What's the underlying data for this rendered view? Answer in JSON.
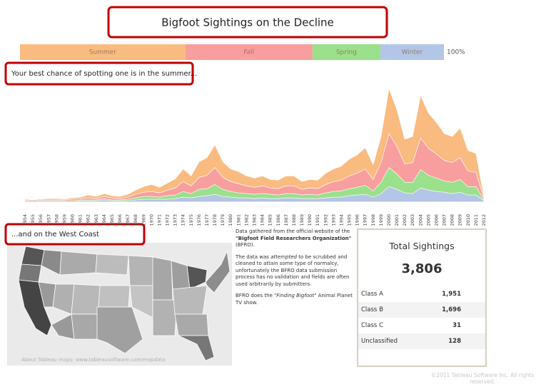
{
  "title": "Bigfoot Sightings on the Decline",
  "season_bar": {
    "labels": [
      "Summer",
      "Fall",
      "Spring",
      "Winter"
    ],
    "values": [
      39,
      30,
      16,
      15
    ],
    "colors": [
      "#f9bb80",
      "#f89e9e",
      "#9be08b",
      "#b3c6e7"
    ],
    "axis_label": "100%"
  },
  "annotations": [
    "Your best chance of spotting one is in the summer...",
    "...and on the West Coast"
  ],
  "chart_data": {
    "type": "area",
    "stacked": true,
    "categories": [
      "1954",
      "1955",
      "1956",
      "1957",
      "1958",
      "1959",
      "1960",
      "1961",
      "1962",
      "1963",
      "1964",
      "1965",
      "1966",
      "1967",
      "1968",
      "1969",
      "1970",
      "1971",
      "1972",
      "1973",
      "1974",
      "1975",
      "1976",
      "1977",
      "1978",
      "1979",
      "1980",
      "1981",
      "1982",
      "1983",
      "1984",
      "1985",
      "1986",
      "1987",
      "1988",
      "1989",
      "1990",
      "1991",
      "1992",
      "1993",
      "1994",
      "1995",
      "1996",
      "1997",
      "1998",
      "1999",
      "2000",
      "2001",
      "2002",
      "2003",
      "2004",
      "2005",
      "2006",
      "2007",
      "2008",
      "2009",
      "2010",
      "2011",
      "2012"
    ],
    "series": [
      {
        "name": "Summer",
        "color": "#f9bb80",
        "values": [
          1,
          1,
          1,
          2,
          2,
          1,
          2,
          2,
          4,
          3,
          4,
          3,
          3,
          4,
          6,
          8,
          10,
          8,
          10,
          13,
          18,
          14,
          22,
          25,
          32,
          22,
          18,
          17,
          14,
          13,
          14,
          12,
          12,
          14,
          14,
          11,
          12,
          12,
          16,
          18,
          20,
          24,
          26,
          30,
          21,
          37,
          64,
          52,
          35,
          37,
          60,
          50,
          45,
          38,
          37,
          42,
          29,
          27,
          2
        ]
      },
      {
        "name": "Fall",
        "color": "#f89e9e",
        "values": [
          1,
          1,
          1,
          1,
          1,
          1,
          2,
          2,
          3,
          2,
          3,
          3,
          2,
          3,
          5,
          6,
          7,
          6,
          8,
          10,
          14,
          11,
          17,
          19,
          24,
          17,
          14,
          13,
          11,
          10,
          11,
          9,
          9,
          11,
          11,
          8,
          9,
          9,
          12,
          14,
          15,
          18,
          20,
          23,
          16,
          28,
          48,
          39,
          26,
          28,
          45,
          38,
          34,
          29,
          28,
          31,
          22,
          20,
          2
        ]
      },
      {
        "name": "Spring",
        "color": "#9be08b",
        "values": [
          1,
          0,
          1,
          1,
          1,
          1,
          1,
          1,
          1,
          1,
          2,
          1,
          1,
          2,
          3,
          4,
          4,
          3,
          5,
          5,
          8,
          6,
          10,
          10,
          14,
          10,
          8,
          7,
          6,
          6,
          6,
          6,
          5,
          6,
          6,
          5,
          6,
          5,
          7,
          8,
          9,
          10,
          11,
          13,
          9,
          16,
          27,
          22,
          15,
          16,
          26,
          21,
          19,
          16,
          16,
          18,
          12,
          12,
          1
        ]
      },
      {
        "name": "Winter",
        "color": "#b3c6e7",
        "values": [
          0,
          0,
          0,
          0,
          0,
          0,
          0,
          1,
          1,
          1,
          2,
          1,
          1,
          1,
          2,
          3,
          3,
          3,
          3,
          4,
          6,
          5,
          7,
          8,
          10,
          7,
          6,
          5,
          5,
          4,
          5,
          4,
          4,
          5,
          5,
          4,
          4,
          4,
          5,
          6,
          6,
          8,
          9,
          10,
          6,
          11,
          21,
          17,
          12,
          11,
          19,
          16,
          14,
          13,
          11,
          13,
          9,
          9,
          1
        ]
      }
    ]
  },
  "map": {
    "credit": "About Tableau maps: www.tableausoftware.com/mapdata"
  },
  "notes": [
    [
      "Data gathered from the official website of the ",
      "\"Bigfoot Field Researchers Organization\"",
      " (BFRO)."
    ],
    [
      "The data was ",
      "attempted",
      " to be scrubbed and cleaned to attain some type of normalcy, unfortunately the BFRO data submission process has no validation and fields are often used arbitrarily by submitters."
    ],
    [
      "BFRO does the ",
      "\"Finding Bigfoot\"",
      " Animal Planet TV show."
    ]
  ],
  "summary": {
    "title": "Total Sightings",
    "total": "3,806",
    "rows": [
      [
        "Class A",
        "1,951"
      ],
      [
        "Class B",
        "1,696"
      ],
      [
        "Class C",
        "31"
      ],
      [
        "Unclassified",
        "128"
      ]
    ]
  },
  "footer": "©2011 Tableau Software Inc. All rights reserved."
}
